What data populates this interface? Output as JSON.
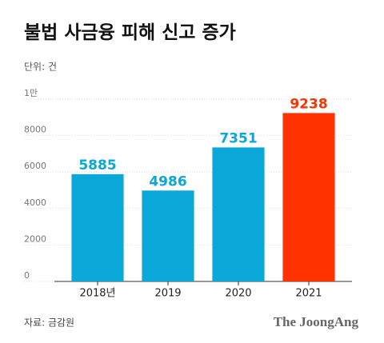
{
  "chart_data": {
    "type": "bar",
    "title": "불법 사금융 피해 신고 증가",
    "subtitle": "단위: 건",
    "categories": [
      "2018년",
      "2019",
      "2020",
      "2021"
    ],
    "values": [
      5885,
      4986,
      7351,
      9238
    ],
    "colors": [
      "#0ba7d8",
      "#0ba7d8",
      "#0ba7d8",
      "#ff3300"
    ],
    "ylim": [
      0,
      10000
    ],
    "yticks": [
      0,
      2000,
      4000,
      6000,
      8000,
      {
        "value": 10000,
        "label": "1만"
      }
    ],
    "grid": true,
    "source": "자료: 금감원",
    "brand": "The JoongAng"
  }
}
